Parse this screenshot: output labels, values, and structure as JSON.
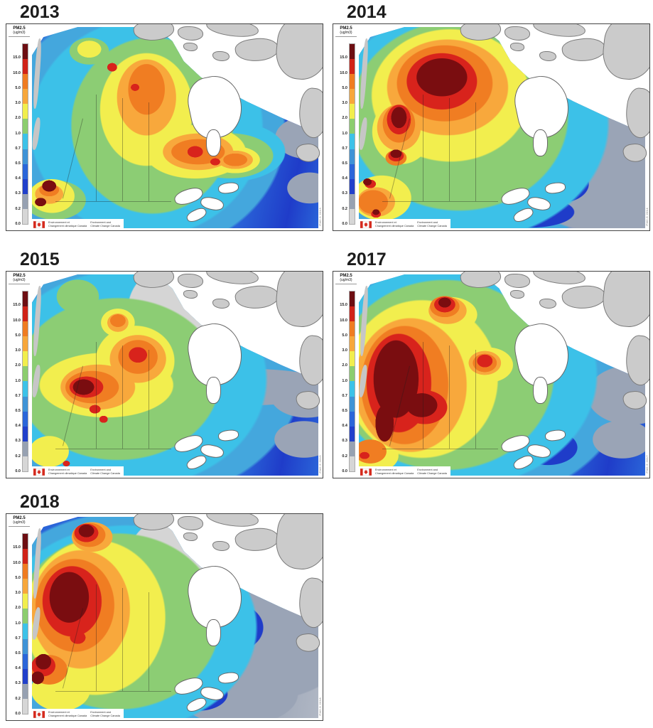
{
  "page": {
    "background": "#ffffff"
  },
  "legend": {
    "title_line1": "PM2.5",
    "title_line2": "(ug/m3)",
    "ticks": [
      "15.0",
      "10.0",
      "5.0",
      "3.0",
      "2.0",
      "1.0",
      "0.7",
      "0.5",
      "0.4",
      "0.3",
      "0.2",
      "0.0"
    ],
    "colors": [
      "#6d0e12",
      "#d02318",
      "#ef7c21",
      "#f7a73b",
      "#f1ee4d",
      "#8ccd6e",
      "#3cc2e8",
      "#3f93d6",
      "#2b66d9",
      "#2140cb",
      "#97a1b2",
      "#d6d6d6"
    ]
  },
  "panels": [
    {
      "year": "2013",
      "field": "f2013",
      "microtext": "PM2.5 2013"
    },
    {
      "year": "2014",
      "field": "f2014",
      "microtext": "PM2.5 2014"
    },
    {
      "year": "2015",
      "field": "f2015",
      "microtext": "PM2.5 2015"
    },
    {
      "year": "2017",
      "field": "f2017",
      "microtext": "PM2.5 2017"
    },
    {
      "year": "2018",
      "field": "f2018",
      "microtext": "PM2.5 2018"
    }
  ],
  "eccc_signature": {
    "flag_color": "#d52b1e",
    "french_line1": "Environnement et",
    "french_line2": "Changement climatique Canada",
    "english_line1": "Environment and",
    "english_line2": "Climate Change Canada"
  },
  "map_colors": {
    "ocean": "#ffffff",
    "land_outside_domain": "#cbcbcb",
    "pm_maroon": "#7a0d10",
    "pm_red": "#d8231c",
    "pm_orange": "#f07d22",
    "pm_amber": "#f8a83c",
    "pm_yellow": "#f2ee4e",
    "pm_green": "#8ccd74",
    "pm_cyan": "#3cc1e8",
    "pm_skyblue": "#44a7dd",
    "pm_blue": "#2a64d8",
    "pm_navy": "#1f3cc9",
    "pm_slate": "#9aa4b6",
    "pm_lightgray": "#d5d5d5"
  }
}
